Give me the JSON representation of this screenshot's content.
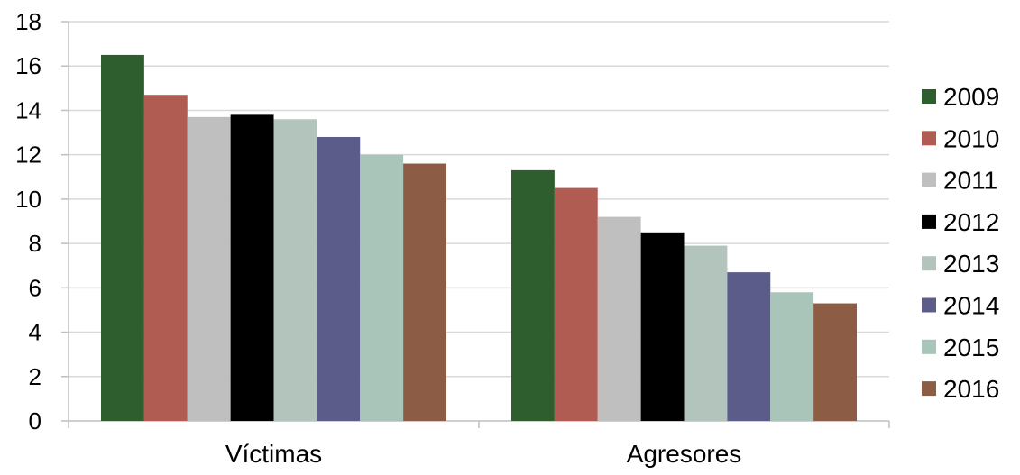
{
  "chart_data": {
    "type": "bar",
    "title": "",
    "xlabel": "",
    "ylabel": "",
    "categories": [
      "Víctimas",
      "Agresores"
    ],
    "ylim": [
      0,
      18
    ],
    "yticks": [
      "0",
      "2",
      "4",
      "6",
      "8",
      "10",
      "12",
      "14",
      "16",
      "18"
    ],
    "grid": true,
    "legend_position": "right",
    "series": [
      {
        "name": "2009",
        "color": "#2e5e2d",
        "values": [
          16.5,
          11.3
        ]
      },
      {
        "name": "2010",
        "color": "#b05c52",
        "values": [
          14.7,
          10.5
        ]
      },
      {
        "name": "2011",
        "color": "#bfbfbf",
        "values": [
          13.7,
          9.2
        ]
      },
      {
        "name": "2012",
        "color": "#000000",
        "values": [
          13.8,
          8.5
        ]
      },
      {
        "name": "2013",
        "color": "#b3c4bd",
        "values": [
          13.6,
          7.9
        ]
      },
      {
        "name": "2014",
        "color": "#5c5c8a",
        "values": [
          12.8,
          6.7
        ]
      },
      {
        "name": "2015",
        "color": "#a9c4b8",
        "values": [
          12.0,
          5.8
        ]
      },
      {
        "name": "2016",
        "color": "#8d5c45",
        "values": [
          11.6,
          5.3
        ]
      }
    ]
  }
}
